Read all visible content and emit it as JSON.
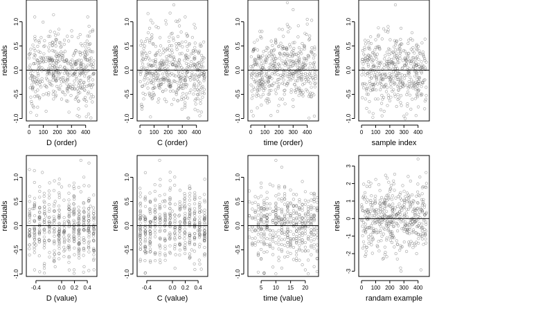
{
  "chart_data": [
    {
      "type": "scatter",
      "xlabel": "D (order)",
      "ylabel": "residuals",
      "xlim": [
        -20,
        480
      ],
      "ylim": [
        -1.05,
        1.45
      ],
      "xticks": [
        0,
        100,
        200,
        300,
        400
      ],
      "xtick_labels": [
        "0",
        "100",
        "200",
        "300",
        "400"
      ],
      "yticks": [
        -1.0,
        -0.5,
        0.0,
        0.5,
        1.0
      ],
      "ytick_labels": [
        "-1.0",
        "-0.5",
        "0.0",
        "0.5",
        "1.0"
      ],
      "hline": 0,
      "n_points": 460,
      "points": [
        [
          8,
          0.35
        ],
        [
          25,
          -0.4
        ],
        [
          40,
          1.1
        ],
        [
          60,
          0.2
        ],
        [
          75,
          -0.3
        ],
        [
          90,
          0.05
        ],
        [
          110,
          0.5
        ],
        [
          130,
          -0.2
        ],
        [
          150,
          0.8
        ],
        [
          170,
          -0.5
        ],
        [
          190,
          0.1
        ],
        [
          210,
          0.3
        ],
        [
          230,
          -0.6
        ],
        [
          250,
          0.05
        ],
        [
          270,
          0.7
        ],
        [
          290,
          -0.3
        ],
        [
          310,
          -0.1
        ],
        [
          330,
          0.4
        ],
        [
          350,
          -0.8
        ],
        [
          370,
          0.2
        ],
        [
          390,
          -0.4
        ],
        [
          410,
          0.6
        ],
        [
          430,
          0.4
        ],
        [
          450,
          -0.2
        ],
        [
          120,
          -0.85
        ],
        [
          65,
          0.15
        ],
        [
          205,
          -0.05
        ],
        [
          340,
          -0.55
        ],
        [
          415,
          1.1
        ],
        [
          455,
          -0.55
        ]
      ],
      "grid": false
    },
    {
      "type": "scatter",
      "xlabel": "C (order)",
      "ylabel": "residuals",
      "xlim": [
        -20,
        480
      ],
      "ylim": [
        -1.05,
        1.45
      ],
      "xticks": [
        0,
        100,
        200,
        300,
        400
      ],
      "xtick_labels": [
        "0",
        "100",
        "200",
        "300",
        "400"
      ],
      "yticks": [
        -1.0,
        -0.5,
        0.0,
        0.5,
        1.0
      ],
      "ytick_labels": [
        "-1.0",
        "-0.5",
        "0.0",
        "0.5",
        "1.0"
      ],
      "hline": 0,
      "n_points": 460,
      "points": [
        [
          10,
          0.6
        ],
        [
          30,
          -0.2
        ],
        [
          50,
          0.3
        ],
        [
          70,
          -0.5
        ],
        [
          95,
          0.1
        ],
        [
          115,
          0.9
        ],
        [
          135,
          -0.35
        ],
        [
          155,
          0.2
        ],
        [
          175,
          -0.6
        ],
        [
          195,
          0.45
        ],
        [
          215,
          -0.1
        ],
        [
          235,
          0.25
        ],
        [
          255,
          -0.45
        ],
        [
          275,
          0.55
        ],
        [
          295,
          0.05
        ],
        [
          315,
          -0.3
        ],
        [
          335,
          0.7
        ],
        [
          355,
          -0.15
        ],
        [
          375,
          0.35
        ],
        [
          395,
          -0.7
        ],
        [
          415,
          0.15
        ],
        [
          435,
          0.5
        ],
        [
          455,
          -0.4
        ],
        [
          240,
          1.35
        ],
        [
          80,
          -0.55
        ],
        [
          320,
          1.1
        ]
      ],
      "grid": false
    },
    {
      "type": "scatter",
      "xlabel": "time (order)",
      "ylabel": "residuals",
      "xlim": [
        -20,
        480
      ],
      "ylim": [
        -1.05,
        1.45
      ],
      "xticks": [
        0,
        100,
        200,
        300,
        400
      ],
      "xtick_labels": [
        "0",
        "100",
        "200",
        "300",
        "400"
      ],
      "yticks": [
        -1.0,
        -0.5,
        0.0,
        0.5,
        1.0
      ],
      "ytick_labels": [
        "-1.0",
        "-0.5",
        "0.0",
        "0.5",
        "1.0"
      ],
      "hline": 0,
      "n_points": 460,
      "points": [
        [
          5,
          -0.85
        ],
        [
          20,
          0.4
        ],
        [
          45,
          -0.1
        ],
        [
          65,
          0.8
        ],
        [
          85,
          -0.3
        ],
        [
          105,
          0.2
        ],
        [
          125,
          -0.5
        ],
        [
          145,
          0.6
        ],
        [
          165,
          0.05
        ],
        [
          185,
          -0.25
        ],
        [
          205,
          0.35
        ],
        [
          225,
          -0.6
        ],
        [
          245,
          0.15
        ],
        [
          265,
          0.9
        ],
        [
          285,
          -0.2
        ],
        [
          305,
          0.45
        ],
        [
          325,
          -0.4
        ],
        [
          345,
          0.1
        ],
        [
          365,
          0.55
        ],
        [
          385,
          -0.15
        ],
        [
          405,
          0.3
        ],
        [
          425,
          -0.55
        ],
        [
          445,
          0.25
        ],
        [
          300,
          1.25
        ],
        [
          400,
          1.05
        ],
        [
          450,
          -0.95
        ]
      ],
      "grid": false
    },
    {
      "type": "scatter",
      "xlabel": "sample index",
      "ylabel": "residuals",
      "xlim": [
        -20,
        480
      ],
      "ylim": [
        -1.05,
        1.45
      ],
      "xticks": [
        0,
        100,
        200,
        300,
        400
      ],
      "xtick_labels": [
        "0",
        "100",
        "200",
        "300",
        "400"
      ],
      "yticks": [
        -1.0,
        -0.5,
        0.0,
        0.5,
        1.0
      ],
      "ytick_labels": [
        "-1.0",
        "-0.5",
        "0.0",
        "0.5",
        "1.0"
      ],
      "hline": 0,
      "n_points": 460,
      "points": [
        [
          8,
          -0.3
        ],
        [
          28,
          0.2
        ],
        [
          48,
          -0.5
        ],
        [
          68,
          0.55
        ],
        [
          88,
          0.1
        ],
        [
          108,
          -0.2
        ],
        [
          128,
          0.45
        ],
        [
          148,
          -0.6
        ],
        [
          168,
          0.3
        ],
        [
          188,
          0.9
        ],
        [
          208,
          -0.35
        ],
        [
          228,
          0.15
        ],
        [
          248,
          -0.75
        ],
        [
          268,
          0.5
        ],
        [
          288,
          -0.1
        ],
        [
          308,
          0.25
        ],
        [
          328,
          -0.45
        ],
        [
          348,
          0.65
        ],
        [
          368,
          0.05
        ],
        [
          388,
          -0.3
        ],
        [
          408,
          0.4
        ],
        [
          428,
          -0.5
        ],
        [
          448,
          0.2
        ],
        [
          240,
          1.35
        ],
        [
          160,
          -0.85
        ],
        [
          300,
          -0.95
        ]
      ],
      "grid": false
    },
    {
      "type": "scatter",
      "xlabel": "D (value)",
      "ylabel": "residuals",
      "xlim": [
        -0.55,
        0.55
      ],
      "ylim": [
        -1.05,
        1.45
      ],
      "xticks": [
        -0.4,
        0.0,
        0.2,
        0.4
      ],
      "xtick_labels": [
        "-0.4",
        "0.0",
        "0.2",
        "0.4"
      ],
      "yticks": [
        -1.0,
        -0.5,
        0.0,
        0.5,
        1.0
      ],
      "ytick_labels": [
        "-1.0",
        "-0.5",
        "0.0",
        "0.5",
        "1.0"
      ],
      "hline": 0,
      "n_points": 460,
      "points": [
        [
          -0.45,
          0.35
        ],
        [
          -0.4,
          -0.4
        ],
        [
          -0.3,
          1.1
        ],
        [
          -0.25,
          0.2
        ],
        [
          -0.2,
          -0.3
        ],
        [
          -0.15,
          0.05
        ],
        [
          -0.1,
          0.5
        ],
        [
          -0.05,
          -0.2
        ],
        [
          0.0,
          0.8
        ],
        [
          0.05,
          -0.5
        ],
        [
          0.1,
          0.1
        ],
        [
          0.1,
          -0.3
        ],
        [
          0.1,
          -0.45
        ],
        [
          0.15,
          0.3
        ],
        [
          0.2,
          -0.6
        ],
        [
          0.25,
          0.05
        ],
        [
          0.3,
          0.7
        ],
        [
          0.35,
          -0.3
        ],
        [
          0.4,
          -0.1
        ],
        [
          0.45,
          0.4
        ],
        [
          -0.1,
          -0.85
        ],
        [
          0.3,
          1.35
        ]
      ],
      "grid": false
    },
    {
      "type": "scatter",
      "xlabel": "C (value)",
      "ylabel": "residuals",
      "xlim": [
        -0.55,
        0.55
      ],
      "ylim": [
        -1.05,
        1.45
      ],
      "xticks": [
        -0.4,
        0.0,
        0.2,
        0.4
      ],
      "xtick_labels": [
        "-0.4",
        "0.0",
        "0.2",
        "0.4"
      ],
      "yticks": [
        -1.0,
        -0.5,
        0.0,
        0.5,
        1.0
      ],
      "ytick_labels": [
        "-1.0",
        "-0.5",
        "0.0",
        "0.5",
        "1.0"
      ],
      "hline": 0,
      "n_points": 460,
      "points": [
        [
          -0.5,
          0.6
        ],
        [
          -0.5,
          -0.3
        ],
        [
          -0.45,
          0.2
        ],
        [
          -0.4,
          -0.55
        ],
        [
          -0.35,
          0.35
        ],
        [
          -0.3,
          0.1
        ],
        [
          -0.2,
          -0.4
        ],
        [
          -0.15,
          0.5
        ],
        [
          -0.05,
          -0.2
        ],
        [
          0.0,
          0.3
        ],
        [
          0.05,
          -0.6
        ],
        [
          0.1,
          0.2
        ],
        [
          0.15,
          0.4
        ],
        [
          0.2,
          -0.35
        ],
        [
          0.25,
          0.15
        ],
        [
          0.3,
          -0.5
        ],
        [
          0.35,
          0.55
        ],
        [
          0.4,
          -0.1
        ],
        [
          0.45,
          0.3
        ],
        [
          0.5,
          -0.45
        ],
        [
          0.5,
          0.2
        ],
        [
          -0.2,
          1.35
        ],
        [
          0.45,
          -0.9
        ]
      ],
      "grid": false
    },
    {
      "type": "scatter",
      "xlabel": "time (value)",
      "ylabel": "residuals",
      "xlim": [
        0.5,
        24.5
      ],
      "ylim": [
        -1.05,
        1.45
      ],
      "xticks": [
        5,
        10,
        15,
        20
      ],
      "xtick_labels": [
        "5",
        "10",
        "15",
        "20"
      ],
      "yticks": [
        -1.0,
        -0.5,
        0.0,
        0.5,
        1.0
      ],
      "ytick_labels": [
        "-1.0",
        "-0.5",
        "0.0",
        "0.5",
        "1.0"
      ],
      "hline": 0,
      "n_points": 460,
      "points": [
        [
          1,
          0.2
        ],
        [
          2,
          -0.4
        ],
        [
          3,
          0.6
        ],
        [
          4,
          -0.1
        ],
        [
          5,
          0.35
        ],
        [
          6,
          -0.55
        ],
        [
          7,
          0.1
        ],
        [
          8,
          0.45
        ],
        [
          9,
          -0.25
        ],
        [
          10,
          0.05
        ],
        [
          11,
          -0.3
        ],
        [
          12,
          0.3
        ],
        [
          12,
          -0.5
        ],
        [
          12,
          0.1
        ],
        [
          13,
          0.55
        ],
        [
          14,
          -0.2
        ],
        [
          15,
          0.25
        ],
        [
          16,
          -0.45
        ],
        [
          17,
          0.4
        ],
        [
          18,
          -0.05
        ],
        [
          19,
          0.15
        ],
        [
          20,
          -0.35
        ],
        [
          21,
          0.5
        ],
        [
          22,
          -0.15
        ],
        [
          23,
          0.2
        ],
        [
          24,
          -0.4
        ],
        [
          10,
          1.35
        ],
        [
          24,
          -0.95
        ]
      ],
      "grid": false
    },
    {
      "type": "scatter",
      "xlabel": "randam example",
      "ylabel": "residuals",
      "xlim": [
        -20,
        480
      ],
      "ylim": [
        -3.3,
        3.6
      ],
      "xticks": [
        0,
        100,
        200,
        300,
        400
      ],
      "xtick_labels": [
        "0",
        "100",
        "200",
        "300",
        "400"
      ],
      "yticks": [
        -3,
        -2,
        -1,
        0,
        1,
        2,
        3
      ],
      "ytick_labels": [
        "-3",
        "-2",
        "-1",
        "0",
        "1",
        "2",
        "3"
      ],
      "hline": 0,
      "n_points": 460,
      "points": [
        [
          10,
          1.2
        ],
        [
          30,
          -0.8
        ],
        [
          50,
          2.1
        ],
        [
          70,
          -1.5
        ],
        [
          90,
          0.4
        ],
        [
          110,
          -0.2
        ],
        [
          130,
          1.6
        ],
        [
          150,
          -2.3
        ],
        [
          170,
          0.9
        ],
        [
          190,
          -0.6
        ],
        [
          210,
          1.9
        ],
        [
          230,
          -1.1
        ],
        [
          250,
          0.2
        ],
        [
          270,
          -1.8
        ],
        [
          290,
          0.7
        ],
        [
          310,
          -0.4
        ],
        [
          330,
          2.4
        ],
        [
          350,
          -1.3
        ],
        [
          370,
          0.5
        ],
        [
          390,
          -2.0
        ],
        [
          410,
          1.3
        ],
        [
          430,
          -0.7
        ],
        [
          450,
          1.8
        ],
        [
          400,
          3.4
        ],
        [
          280,
          -3.0
        ]
      ],
      "grid": false
    }
  ]
}
